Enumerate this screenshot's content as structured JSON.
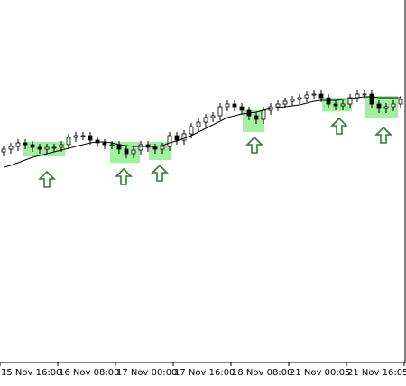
{
  "chart_data": {
    "type": "candlestick",
    "open": [
      232,
      235,
      238,
      242,
      240,
      237,
      235,
      237,
      237,
      240,
      248,
      250,
      250,
      245,
      242,
      240,
      240,
      235,
      230,
      234,
      240,
      237,
      235,
      238,
      250,
      245,
      252,
      260,
      265,
      270,
      272,
      282,
      285,
      282,
      278,
      272,
      268,
      278,
      282,
      285,
      288,
      290,
      292,
      295,
      296,
      292,
      285,
      283,
      285,
      292,
      296,
      296,
      285,
      280,
      282,
      285
    ],
    "high": [
      239,
      242,
      246,
      246,
      244,
      241,
      241,
      241,
      244,
      252,
      254,
      254,
      254,
      249,
      246,
      244,
      244,
      239,
      238,
      244,
      244,
      241,
      242,
      254,
      254,
      256,
      264,
      269,
      274,
      276,
      286,
      289,
      289,
      286,
      282,
      276,
      282,
      286,
      289,
      292,
      294,
      296,
      299,
      300,
      300,
      296,
      289,
      289,
      296,
      300,
      300,
      300,
      289,
      286,
      289,
      294
    ],
    "low": [
      227,
      230,
      233,
      235,
      232,
      230,
      230,
      232,
      232,
      235,
      243,
      245,
      240,
      237,
      235,
      235,
      230,
      225,
      225,
      229,
      232,
      230,
      230,
      233,
      240,
      240,
      247,
      255,
      260,
      265,
      267,
      277,
      277,
      273,
      267,
      263,
      263,
      273,
      277,
      280,
      283,
      285,
      287,
      290,
      287,
      280,
      278,
      278,
      280,
      287,
      291,
      280,
      275,
      275,
      277,
      280
    ],
    "close": [
      235,
      238,
      242,
      240,
      237,
      235,
      237,
      237,
      240,
      248,
      250,
      250,
      245,
      242,
      240,
      240,
      235,
      230,
      234,
      240,
      237,
      235,
      238,
      250,
      245,
      252,
      260,
      265,
      270,
      272,
      282,
      285,
      282,
      278,
      272,
      268,
      278,
      282,
      285,
      288,
      290,
      292,
      295,
      296,
      292,
      285,
      283,
      285,
      292,
      296,
      296,
      285,
      280,
      282,
      285,
      290
    ],
    "moving_average": [
      215,
      217,
      220,
      223,
      226,
      228,
      230,
      232,
      234,
      236,
      238,
      240,
      242,
      243,
      243,
      242,
      240,
      239,
      238,
      238,
      238,
      238,
      239,
      242,
      244,
      247,
      250,
      254,
      258,
      262,
      266,
      270,
      272,
      274,
      275,
      276,
      278,
      280,
      281,
      282,
      283,
      284,
      286,
      288,
      289,
      289,
      289,
      290,
      291,
      292,
      293,
      293,
      292,
      292,
      292,
      292
    ],
    "xlim": [
      -0.5,
      55.75
    ],
    "ylim": [
      0,
      400
    ],
    "xticks": [
      {
        "value": -0.5,
        "label": "15 Nov 16:00"
      },
      {
        "value": 7.5,
        "label": "16 Nov 08:00"
      },
      {
        "value": 15.5,
        "label": "17 Nov 00:00"
      },
      {
        "value": 23.5,
        "label": "17 Nov 16:00"
      },
      {
        "value": 31.5,
        "label": "18 Nov 08:00"
      },
      {
        "value": 39.5,
        "label": "21 Nov 00:05"
      },
      {
        "value": 47.5,
        "label": "21 Nov 16:05"
      },
      {
        "value": 55.5,
        "label": "2"
      }
    ],
    "up_color": "#ffffff",
    "down_color": "#000000",
    "line_color": "#000000"
  }
}
